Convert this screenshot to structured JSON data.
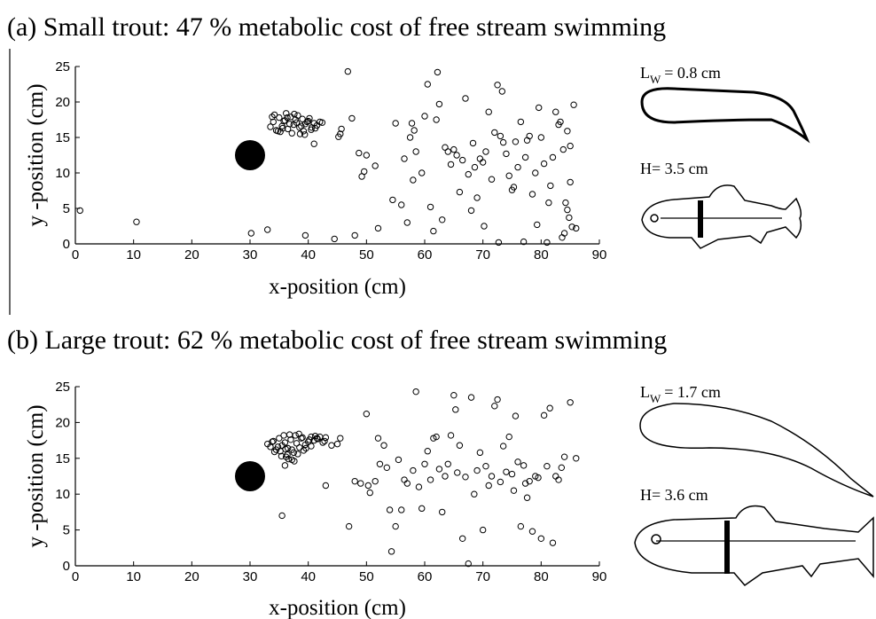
{
  "chart_data": [
    {
      "type": "scatter",
      "title": "(a) Small trout: 47 % metabolic cost of free stream swimming",
      "x_label": "x-position (cm)",
      "y_label": "y -position (cm)",
      "xlim": [
        0,
        90
      ],
      "ylim": [
        0,
        25
      ],
      "xticks": [
        0,
        10,
        20,
        30,
        40,
        50,
        60,
        70,
        80,
        90
      ],
      "yticks": [
        0,
        5,
        10,
        15,
        20,
        25
      ],
      "cylinder": {
        "x": 30,
        "y": 12.5
      },
      "wake_symbol": "L",
      "wake_subscript": "W",
      "wake_value": "= 0.8 cm",
      "height_label": "H= 3.5 cm",
      "series": [
        {
          "color": "#000000",
          "x": [
            0.8,
            10.5,
            30.2,
            33,
            39.5,
            44.5,
            45.5,
            45.7,
            46.8,
            47.5,
            48,
            48.7,
            49.2,
            49.6,
            50,
            51.5,
            52,
            54.5,
            55,
            56,
            56.5,
            57,
            57.5,
            57.8,
            58,
            58.2,
            58.5,
            59.5,
            60,
            60.5,
            61,
            61.5,
            62,
            62.2,
            62.5,
            63,
            63.5,
            64,
            64.5,
            65,
            65.5,
            66,
            66.5,
            67,
            67.5,
            68,
            68.3,
            68.6,
            69,
            69.5,
            70,
            70.2,
            70.5,
            71,
            71.5,
            72,
            72.5,
            72.7,
            73,
            73.3,
            73.5,
            74,
            74.5,
            75,
            75.3,
            75.6,
            76,
            76.5,
            77,
            77.3,
            77.6,
            78,
            78.5,
            79,
            79.3,
            79.6,
            80,
            80.5,
            81,
            81.3,
            81.6,
            82,
            82.5,
            83,
            83.3,
            83.6,
            84,
            84.2,
            84.5,
            84.8,
            85,
            85.3,
            85.6,
            86,
            85,
            84.5,
            83.8,
            41,
            45.2,
            33.5,
            34,
            34.5,
            35,
            35.5,
            36,
            36.5,
            37,
            37.5,
            38,
            38.5,
            39,
            39.5,
            40,
            40.5,
            41,
            41.5,
            42,
            34.2,
            35.2,
            36.2,
            37.2,
            38.2,
            39.2,
            40.2,
            41.2,
            35.8,
            36.8,
            37.8,
            38.8,
            39.8,
            34.8,
            36.4,
            37.6,
            38.6,
            40.6,
            33.8,
            35.6,
            39.4,
            42.4
          ],
          "y": [
            4.7,
            3.1,
            1.5,
            2,
            1.2,
            0.7,
            15.5,
            16.2,
            24.3,
            17.7,
            1.2,
            12.8,
            9.5,
            10.2,
            12.5,
            11,
            2.2,
            6.2,
            17,
            5.5,
            12,
            3,
            15,
            17,
            9,
            16,
            13,
            10,
            18,
            22.5,
            5.2,
            1.8,
            17.5,
            24.2,
            19.7,
            3.4,
            13.6,
            13,
            11.2,
            13.3,
            12.5,
            7.3,
            11.8,
            20.5,
            9.8,
            4.7,
            14.2,
            10.8,
            6.5,
            12,
            11.5,
            2.5,
            13,
            18.6,
            9.1,
            15.7,
            22.4,
            0.2,
            15.2,
            21.5,
            14.3,
            12.7,
            9.6,
            7.6,
            8,
            14.4,
            10.8,
            17.2,
            0.3,
            12.2,
            14.6,
            15.2,
            7,
            10,
            2.7,
            19.2,
            15,
            11.3,
            0.2,
            5.8,
            8.2,
            12.2,
            18.6,
            16.8,
            17.2,
            0.9,
            1.5,
            5.8,
            15.9,
            3.7,
            13.8,
            2.4,
            19.6,
            2.2,
            8.7,
            4.8,
            13.3,
            14.1,
            15.1,
            16.5,
            17.2,
            16,
            17.8,
            16.6,
            17.4,
            16.2,
            17.9,
            16.8,
            17.1,
            16.4,
            17.6,
            16.9,
            17.3,
            16.1,
            17,
            16.7,
            17.2,
            18.2,
            15.8,
            18.4,
            15.6,
            18.1,
            15.9,
            17.7,
            16.3,
            17.3,
            16.9,
            17.5,
            16.6,
            17.2,
            15.9,
            17.8,
            18.3,
            15.5,
            16.4,
            17.9,
            16.3,
            15.4,
            17.1
          ]
        }
      ]
    },
    {
      "type": "scatter",
      "title": "(b) Large trout: 62 % metabolic cost of free stream swimming",
      "x_label": "x-position (cm)",
      "y_label": "y -position (cm)",
      "xlim": [
        0,
        90
      ],
      "ylim": [
        0,
        25
      ],
      "xticks": [
        0,
        10,
        20,
        30,
        40,
        50,
        60,
        70,
        80,
        90
      ],
      "yticks": [
        0,
        5,
        10,
        15,
        20,
        25
      ],
      "cylinder": {
        "x": 30,
        "y": 12.5
      },
      "wake_symbol": "L",
      "wake_subscript": "W",
      "wake_value": "= 1.7 cm",
      "height_label": "H= 3.6 cm",
      "series": [
        {
          "color": "#000000",
          "x": [
            35.5,
            36,
            43,
            45.5,
            47,
            48,
            49,
            50,
            50.3,
            50.6,
            51.5,
            52,
            52.3,
            53,
            53.5,
            54,
            54.3,
            55,
            55.5,
            56,
            56.5,
            57,
            58,
            58.5,
            59,
            59.5,
            60,
            60.5,
            61,
            61.5,
            62,
            62.5,
            63,
            63.5,
            64,
            64.5,
            65,
            65.3,
            65.6,
            66,
            66.5,
            67,
            67.5,
            68,
            68.5,
            69,
            69.5,
            70,
            70.5,
            71,
            71.5,
            72,
            72.5,
            73,
            73.5,
            74,
            74.5,
            75,
            75.3,
            75.6,
            76,
            76.5,
            77,
            77.3,
            77.6,
            78,
            78.5,
            79,
            79.5,
            80,
            80.5,
            81,
            81.5,
            82,
            82.5,
            83,
            83.5,
            84,
            85,
            86,
            44,
            45,
            40.5,
            33,
            33.5,
            34,
            34.5,
            35,
            35.5,
            36,
            36.5,
            37,
            37.5,
            38,
            38.5,
            39,
            39.5,
            40,
            40.5,
            41,
            41.5,
            42,
            42.5,
            43,
            34.2,
            35.2,
            36.2,
            37.2,
            38.2,
            39.2,
            40.2,
            41.2,
            35.8,
            36.8,
            37.8,
            38.8,
            36.4,
            37.6,
            34.8,
            33.8,
            36.6,
            37.2,
            42.8,
            35.4,
            39.6,
            38.4,
            41.6,
            36.1
          ],
          "y": [
            7,
            14,
            11.2,
            17.8,
            5.5,
            11.8,
            11.5,
            21.2,
            11.2,
            10.2,
            11.8,
            17.8,
            14.2,
            16.8,
            13.7,
            7.8,
            2,
            5.5,
            14.8,
            7.8,
            12,
            11.5,
            13.3,
            24.3,
            11,
            8,
            14.2,
            16,
            12,
            17.8,
            18,
            13.5,
            7.5,
            12.5,
            14.2,
            18.2,
            23.8,
            21.8,
            13,
            16.8,
            3.8,
            12.4,
            0.3,
            23.5,
            10,
            13.3,
            15.8,
            5,
            13.9,
            11.2,
            12.5,
            22.3,
            23.2,
            11.7,
            16.7,
            13.1,
            18,
            12.8,
            10.5,
            20.9,
            14.5,
            5.5,
            14,
            11.5,
            9.5,
            11.8,
            4.8,
            12.5,
            12.3,
            3.8,
            21,
            13.9,
            22,
            3.2,
            12.5,
            12,
            13.7,
            15.2,
            22.8,
            15,
            16.8,
            17,
            18,
            17,
            16.6,
            17.4,
            16.2,
            17.8,
            16.8,
            17.2,
            16.4,
            17.6,
            15.8,
            17.1,
            16.5,
            17.9,
            16.9,
            17.3,
            16.7,
            17.5,
            17.8,
            18,
            17.2,
            17.9,
            15.9,
            16,
            15.2,
            14.8,
            15.6,
            16.1,
            17.6,
            18.1,
            18.2,
            18.3,
            18.2,
            17.8,
            15.5,
            14.6,
            16.6,
            17.3,
            14.9,
            16.2,
            17.4,
            15.3,
            16.4,
            18.4,
            17.7,
            16.3
          ]
        }
      ]
    }
  ]
}
